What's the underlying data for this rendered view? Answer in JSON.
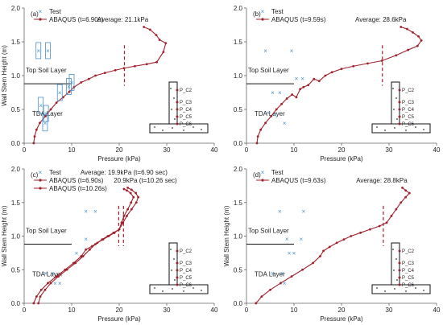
{
  "chart_data": [
    {
      "type": "line",
      "panel_label": "(a)",
      "xlabel": "Pressure (kPa)",
      "ylabel": "Wall Stem Height (m)",
      "xlim": [
        0,
        40
      ],
      "ylim": [
        0,
        2.0
      ],
      "xticks": [
        "0",
        "10",
        "20",
        "30",
        "40"
      ],
      "yticks": [
        "0.0",
        "0.5",
        "1.0",
        "1.5",
        "2.0"
      ],
      "grid": false,
      "legend": "top-left",
      "series": [
        {
          "name": "Test",
          "kind": "scatter",
          "x": [
            3.0,
            5.0,
            3.5,
            4.6,
            4.4,
            7.5,
            10.0,
            9.4
          ],
          "y": [
            1.37,
            1.37,
            0.56,
            0.44,
            0.3,
            0.75,
            0.9,
            0.84
          ]
        },
        {
          "name": "ABAQUS (t=6.90s)",
          "kind": "line",
          "x": [
            2.0,
            2.2,
            2.6,
            3.3,
            4.5,
            5.6,
            6.8,
            8.2,
            9.5,
            10.5,
            12.0,
            13.6,
            15.0,
            17.0,
            19.2,
            21.0,
            23.3,
            25.8,
            27.9,
            29.3,
            29.8,
            28.5,
            27.8,
            26.5,
            25.2
          ],
          "y": [
            0.0,
            0.1,
            0.2,
            0.3,
            0.4,
            0.5,
            0.6,
            0.68,
            0.76,
            0.83,
            0.9,
            0.95,
            1.0,
            1.04,
            1.08,
            1.11,
            1.14,
            1.17,
            1.2,
            1.35,
            1.48,
            1.53,
            1.6,
            1.68,
            1.72
          ]
        }
      ],
      "average": {
        "x": 21.1,
        "label": "Average: 21.1kPa"
      },
      "layers": {
        "boundary_y": 0.88,
        "top_label": "Top Soil Layer",
        "bottom_label": "TDA Layer"
      },
      "sensors": [
        "P_C2",
        "P_C3",
        "P_C4",
        "P_C5",
        "P_C6"
      ]
    },
    {
      "type": "line",
      "panel_label": "(b)",
      "xlabel": "Pressure (kPa)",
      "ylabel": "",
      "xlim": [
        0,
        40
      ],
      "ylim": [
        0,
        2.0
      ],
      "xticks": [
        "0",
        "10",
        "20",
        "30",
        "40"
      ],
      "yticks": [
        "0.0",
        "0.5",
        "1.0",
        "1.5",
        "2.0"
      ],
      "grid": false,
      "legend": "top-left",
      "series": [
        {
          "name": "Test",
          "kind": "scatter",
          "x": [
            4.0,
            9.5,
            5.5,
            7.0,
            4.5,
            6.0,
            8.0,
            10.5,
            11.8
          ],
          "y": [
            1.37,
            1.37,
            0.75,
            0.75,
            0.45,
            0.42,
            0.3,
            0.96,
            0.96
          ]
        },
        {
          "name": "ABAQUS (t=9.59s)",
          "kind": "line",
          "x": [
            2.2,
            2.4,
            3.0,
            4.0,
            5.2,
            6.3,
            7.4,
            8.5,
            9.6,
            10.5,
            11.3,
            12.0,
            13.0,
            14.2,
            15.3,
            16.6,
            18.0,
            20.0,
            22.5,
            25.5,
            28.5,
            31.5,
            34.0,
            36.0,
            36.8,
            36.2,
            35.0,
            33.8,
            32.5
          ],
          "y": [
            0.0,
            0.1,
            0.2,
            0.3,
            0.4,
            0.5,
            0.58,
            0.66,
            0.72,
            0.68,
            0.8,
            0.83,
            0.86,
            0.95,
            0.92,
            1.0,
            1.05,
            1.1,
            1.14,
            1.18,
            1.22,
            1.3,
            1.38,
            1.44,
            1.52,
            1.58,
            1.64,
            1.69,
            1.72
          ]
        }
      ],
      "average": {
        "x": 28.6,
        "label": "Average: 28.6kPa"
      },
      "layers": {
        "boundary_y": 0.88,
        "top_label": "Top Soil Layer",
        "bottom_label": "TDA Layer"
      },
      "sensors": [
        "P_C2",
        "P_C3",
        "P_C4",
        "P_C5",
        "P_C6"
      ]
    },
    {
      "type": "line",
      "panel_label": "(c)",
      "xlabel": "Pressure (kPa)",
      "ylabel": "Wall Stem Height (m)",
      "xlim": [
        0,
        40
      ],
      "ylim": [
        0,
        2.0
      ],
      "xticks": [
        "0",
        "10",
        "20",
        "30",
        "40"
      ],
      "yticks": [
        "0.0",
        "0.5",
        "1.0",
        "1.5",
        "2.0"
      ],
      "grid": false,
      "legend": "top-left",
      "series": [
        {
          "name": "Test",
          "kind": "scatter",
          "x": [
            13.0,
            15.0,
            4.5,
            6.0,
            6.5,
            7.5,
            11.0,
            13.0
          ],
          "y": [
            1.37,
            1.37,
            0.45,
            0.45,
            0.3,
            0.3,
            0.75,
            0.96
          ]
        },
        {
          "name": "ABAQUS (t=6.90s)",
          "kind": "line",
          "x": [
            2.0,
            2.6,
            3.6,
            5.0,
            6.8,
            8.6,
            10.4,
            12.0,
            13.0,
            14.3,
            15.4,
            16.6,
            17.8,
            19.0,
            20.0,
            20.5,
            21.0,
            21.8,
            22.5,
            23.0,
            22.4,
            21.6,
            21.0
          ],
          "y": [
            0.0,
            0.1,
            0.2,
            0.3,
            0.4,
            0.5,
            0.6,
            0.7,
            0.8,
            0.85,
            0.9,
            0.95,
            1.0,
            1.05,
            1.1,
            1.2,
            1.3,
            1.4,
            1.5,
            1.58,
            1.64,
            1.68,
            1.7
          ]
        },
        {
          "name": "ABAQUS (t=10.26s)",
          "kind": "line",
          "x": [
            3.0,
            3.4,
            4.4,
            5.6,
            7.2,
            9.0,
            10.8,
            12.4,
            13.8,
            15.0,
            16.4,
            17.6,
            18.8,
            20.0,
            20.8,
            21.6,
            22.6,
            23.6,
            24.0,
            23.5,
            22.6,
            21.8
          ],
          "y": [
            0.0,
            0.1,
            0.2,
            0.3,
            0.4,
            0.5,
            0.6,
            0.7,
            0.8,
            0.88,
            0.95,
            1.0,
            1.05,
            1.1,
            1.2,
            1.3,
            1.4,
            1.5,
            1.58,
            1.64,
            1.69,
            1.72
          ]
        }
      ],
      "average_lines": [
        {
          "x": 19.9,
          "label": "Average: 19.9kPa (t=6.90 sec)"
        },
        {
          "x": 20.9,
          "label": "20.9kPa (t=10.26 sec)"
        }
      ],
      "layers": {
        "boundary_y": 0.88,
        "top_label": "Top Soil Layer",
        "bottom_label": "TDA Layer"
      },
      "sensors": [
        "P_C2",
        "P_C3",
        "P_C4",
        "P_C5",
        "P_C6"
      ]
    },
    {
      "type": "line",
      "panel_label": "(d)",
      "xlabel": "Pressure (kPa)",
      "ylabel": "Wall Stem Height (m)",
      "xlim": [
        0,
        40
      ],
      "ylim": [
        0,
        2.0
      ],
      "xticks": [
        "0",
        "10",
        "20",
        "30",
        "40"
      ],
      "yticks": [
        "0.0",
        "0.5",
        "1.0",
        "1.5",
        "2.0"
      ],
      "grid": false,
      "legend": "top-left",
      "series": [
        {
          "name": "Test",
          "kind": "scatter",
          "x": [
            7.0,
            12.0,
            9.0,
            10.0,
            5.5,
            7.5,
            8.0,
            8.5,
            11.5
          ],
          "y": [
            1.37,
            1.37,
            0.75,
            0.75,
            0.45,
            0.45,
            0.3,
            0.96,
            0.96
          ]
        },
        {
          "name": "ABAQUS (t=9.63s)",
          "kind": "line",
          "x": [
            2.0,
            3.2,
            5.0,
            7.2,
            9.5,
            11.8,
            14.0,
            15.5,
            16.2,
            17.5,
            19.0,
            20.5,
            22.0,
            24.0,
            26.0,
            28.0,
            29.5,
            30.5,
            31.5,
            32.5,
            33.5,
            34.3,
            33.5,
            32.8
          ],
          "y": [
            0.0,
            0.1,
            0.2,
            0.3,
            0.4,
            0.5,
            0.6,
            0.7,
            0.78,
            0.84,
            0.9,
            0.95,
            1.0,
            1.05,
            1.1,
            1.15,
            1.2,
            1.3,
            1.4,
            1.5,
            1.58,
            1.64,
            1.68,
            1.72
          ]
        }
      ],
      "average": {
        "x": 28.8,
        "label": "Average: 28.8kPa"
      },
      "layers": {
        "boundary_y": 0.88,
        "top_label": "Top Soil Layer",
        "bottom_label": "TDA Layer"
      },
      "sensors": [
        "P_C2",
        "P_C3",
        "P_C4",
        "P_C5",
        "P_C6"
      ]
    }
  ],
  "colors": {
    "test": "#4a90c8",
    "abaqus": "#a0202a",
    "average": "#a0202a",
    "axis": "#666666",
    "text": "#222222"
  }
}
